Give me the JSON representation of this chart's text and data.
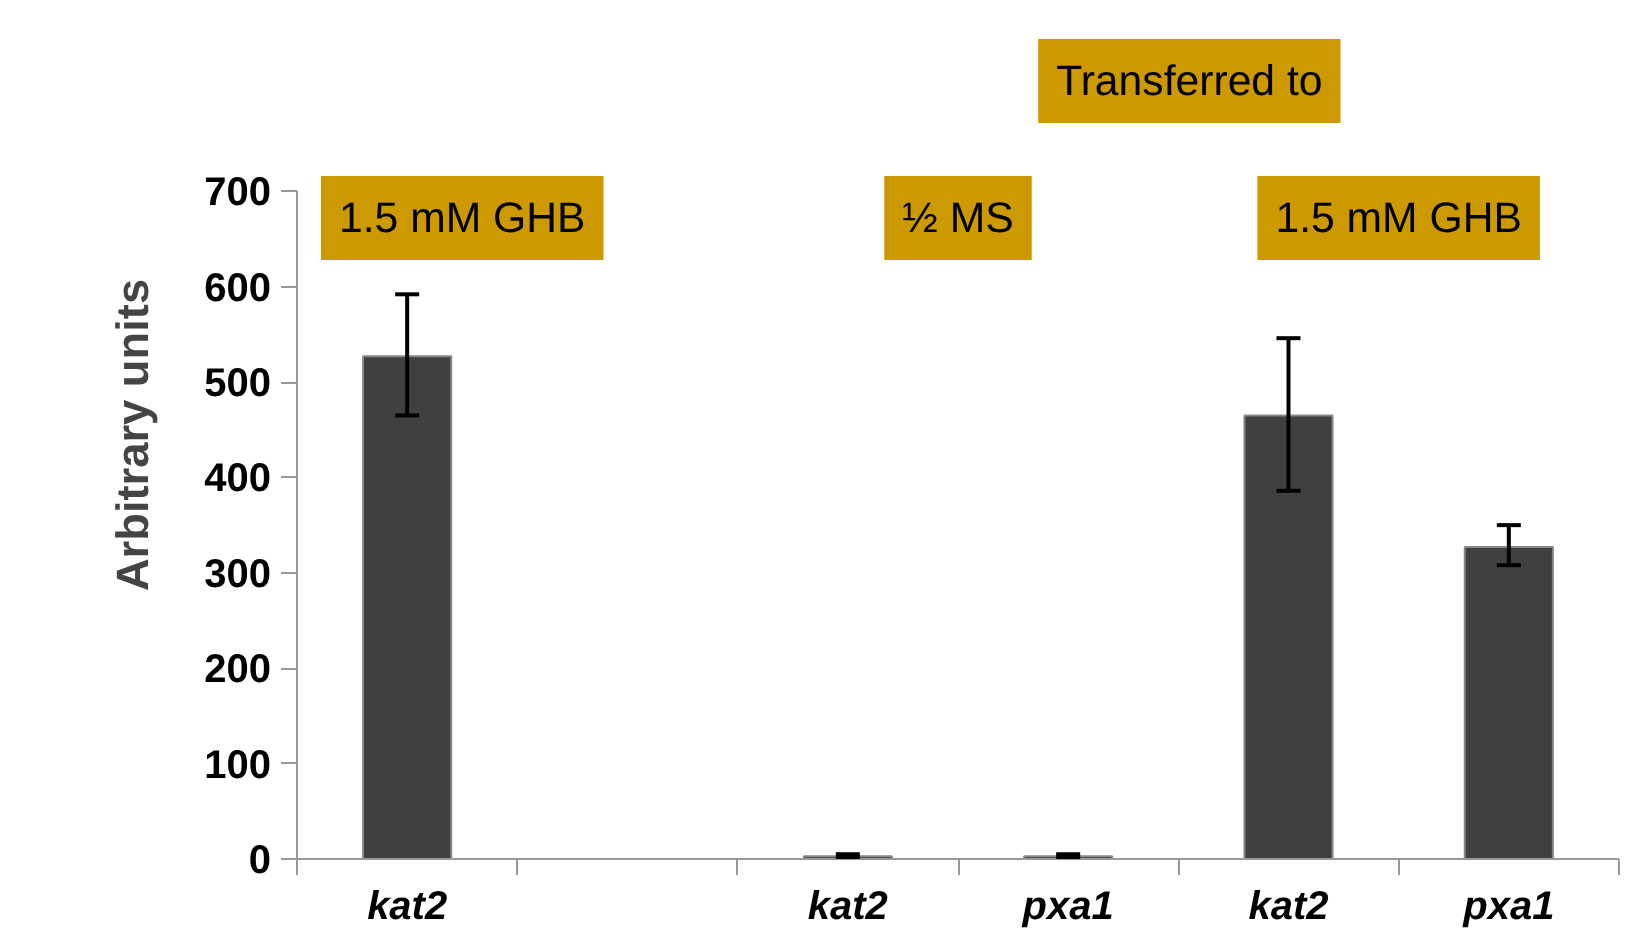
{
  "chart_data": {
    "type": "bar",
    "ylabel": "Arbitrary units",
    "categories": [
      "kat2",
      null,
      "kat2",
      "pxa1",
      "kat2",
      "pxa1"
    ],
    "values": [
      527,
      null,
      3,
      3,
      465,
      327
    ],
    "errors": [
      [
        465,
        592
      ],
      null,
      [
        2,
        5
      ],
      [
        2,
        5
      ],
      [
        386,
        546
      ],
      [
        308,
        350
      ]
    ],
    "color": "#404040",
    "ylim": [
      0,
      700
    ],
    "yticks": [
      0,
      100,
      200,
      300,
      400,
      500,
      600,
      700
    ],
    "grid": false,
    "annotations": [
      "1.5 mM GHB",
      "½ MS",
      "Transferred to",
      "1.5 mM GHB"
    ]
  }
}
